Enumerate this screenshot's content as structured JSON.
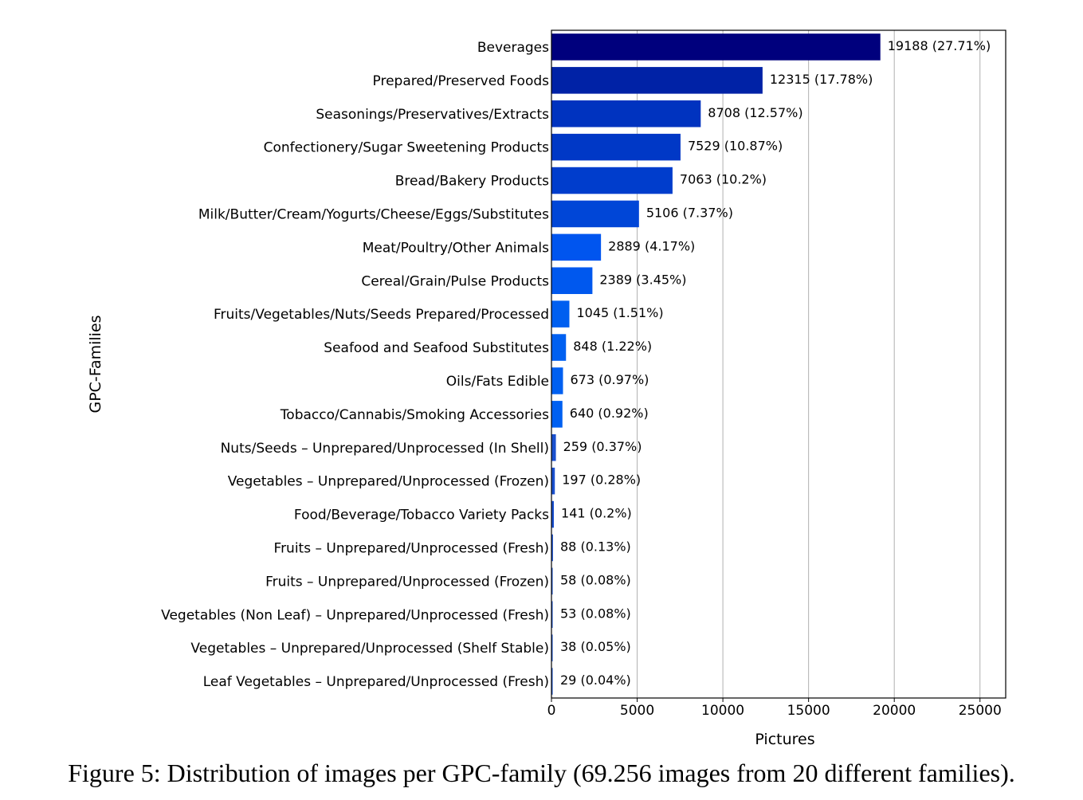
{
  "chart_data": {
    "type": "bar",
    "orientation": "horizontal",
    "xlabel": "Pictures",
    "ylabel": "GPC-Families",
    "xlim": [
      0,
      26500
    ],
    "xticks": [
      0,
      5000,
      10000,
      15000,
      20000,
      25000
    ],
    "grid": "vertical",
    "categories": [
      "Beverages",
      "Prepared/Preserved Foods",
      "Seasonings/Preservatives/Extracts",
      "Confectionery/Sugar Sweetening Products",
      "Bread/Bakery Products",
      "Milk/Butter/Cream/Yogurts/Cheese/Eggs/Substitutes",
      "Meat/Poultry/Other Animals",
      "Cereal/Grain/Pulse Products",
      "Fruits/Vegetables/Nuts/Seeds Prepared/Processed",
      "Seafood and Seafood Substitutes",
      "Oils/Fats Edible",
      "Tobacco/Cannabis/Smoking Accessories",
      "Nuts/Seeds – Unprepared/Unprocessed (In Shell)",
      "Vegetables – Unprepared/Unprocessed (Frozen)",
      "Food/Beverage/Tobacco Variety Packs",
      "Fruits – Unprepared/Unprocessed (Fresh)",
      "Fruits – Unprepared/Unprocessed (Frozen)",
      "Vegetables (Non Leaf) – Unprepared/Unprocessed (Fresh)",
      "Vegetables – Unprepared/Unprocessed (Shelf Stable)",
      "Leaf Vegetables – Unprepared/Unprocessed (Fresh)"
    ],
    "values": [
      19188,
      12315,
      8708,
      7529,
      7063,
      5106,
      2889,
      2389,
      1045,
      848,
      673,
      640,
      259,
      197,
      141,
      88,
      58,
      53,
      38,
      29
    ],
    "data_labels": [
      "19188 (27.71%)",
      "12315 (17.78%)",
      "8708 (12.57%)",
      "7529 (10.87%)",
      "7063 (10.2%)",
      "5106 (7.37%)",
      "2889 (4.17%)",
      "2389 (3.45%)",
      "1045 (1.51%)",
      "848 (1.22%)",
      "673 (0.97%)",
      "640 (0.92%)",
      "259 (0.37%)",
      "197 (0.28%)",
      "141 (0.2%)",
      "88 (0.13%)",
      "58 (0.08%)",
      "53 (0.08%)",
      "38 (0.05%)",
      "29 (0.04%)"
    ],
    "colors": [
      "#00007d",
      "#0022a6",
      "#0033bf",
      "#0038c6",
      "#003dcc",
      "#0046d7",
      "#0055ef",
      "#0058ee",
      "#005ff0",
      "#0060f1",
      "#0060f1",
      "#0060f1",
      "#1a50cf",
      "#1a50cf",
      "#1a50cf",
      "#1a50cf",
      "#1a50cf",
      "#1a50cf",
      "#1a50cf",
      "#1a50cf"
    ]
  },
  "caption": "Figure 5: Distribution of images per GPC-family (69.256 images from 20 different families)."
}
